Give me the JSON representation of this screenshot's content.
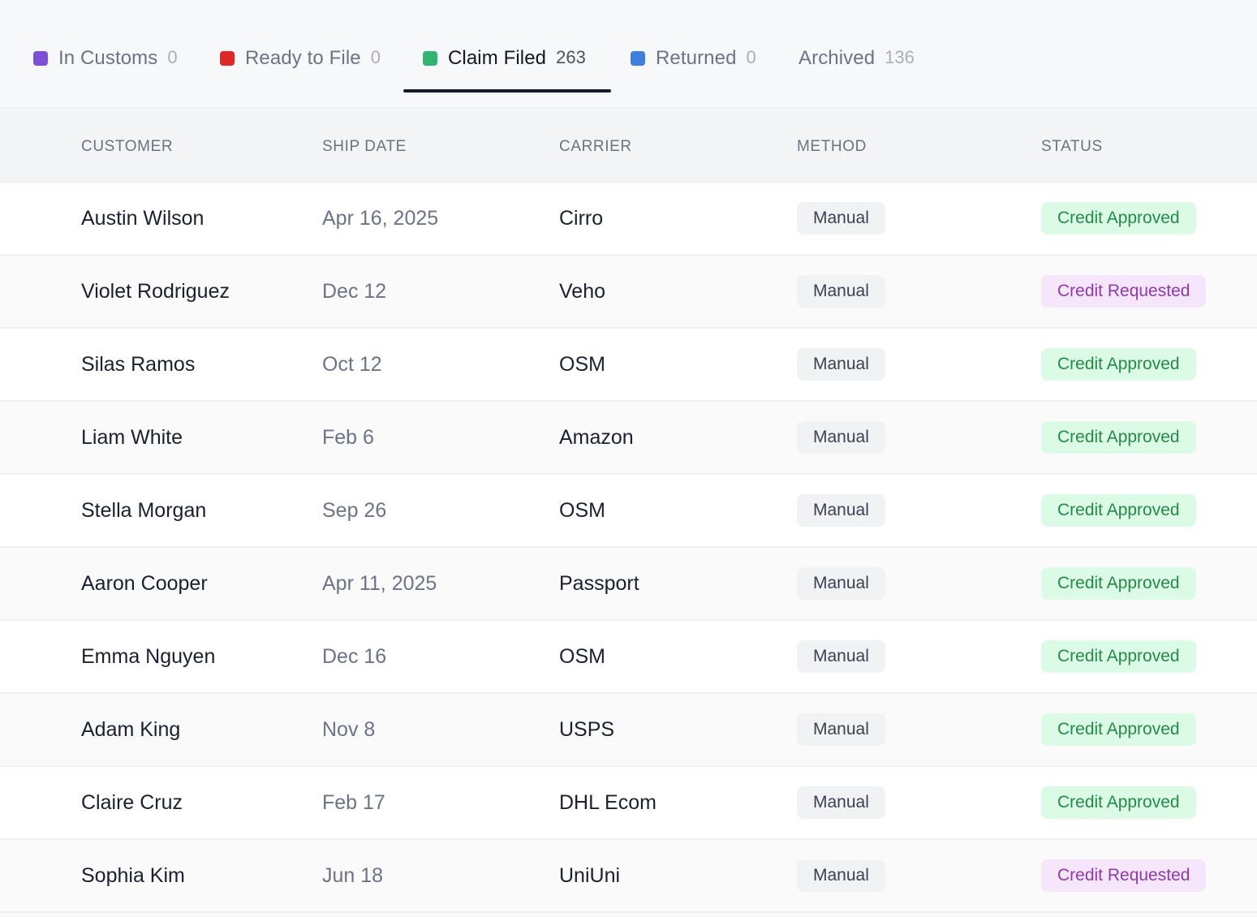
{
  "tabs": [
    {
      "label": "In Customs",
      "count": "0",
      "color": "#7b4fd6"
    },
    {
      "label": "Ready to File",
      "count": "0",
      "color": "#dc2a2a"
    },
    {
      "label": "Claim Filed",
      "count": "263",
      "color": "#2fb571",
      "active": true
    },
    {
      "label": "Returned",
      "count": "0",
      "color": "#3e7fdc"
    },
    {
      "label": "Archived",
      "count": "136"
    }
  ],
  "table": {
    "headers": {
      "customer": "CUSTOMER",
      "ship_date": "SHIP DATE",
      "carrier": "CARRIER",
      "method": "METHOD",
      "status": "STATUS"
    },
    "rows": [
      {
        "customer": "Austin Wilson",
        "ship_date": "Apr 16, 2025",
        "carrier": "Cirro",
        "method": "Manual",
        "status": "Credit Approved"
      },
      {
        "customer": "Violet Rodriguez",
        "ship_date": "Dec 12",
        "carrier": "Veho",
        "method": "Manual",
        "status": "Credit Requested"
      },
      {
        "customer": "Silas Ramos",
        "ship_date": "Oct 12",
        "carrier": "OSM",
        "method": "Manual",
        "status": "Credit Approved"
      },
      {
        "customer": "Liam White",
        "ship_date": "Feb 6",
        "carrier": "Amazon",
        "method": "Manual",
        "status": "Credit Approved"
      },
      {
        "customer": "Stella Morgan",
        "ship_date": "Sep 26",
        "carrier": "OSM",
        "method": "Manual",
        "status": "Credit Approved"
      },
      {
        "customer": "Aaron Cooper",
        "ship_date": "Apr 11, 2025",
        "carrier": "Passport",
        "method": "Manual",
        "status": "Credit Approved"
      },
      {
        "customer": "Emma Nguyen",
        "ship_date": "Dec 16",
        "carrier": "OSM",
        "method": "Manual",
        "status": "Credit Approved"
      },
      {
        "customer": "Adam King",
        "ship_date": "Nov 8",
        "carrier": "USPS",
        "method": "Manual",
        "status": "Credit Approved"
      },
      {
        "customer": "Claire Cruz",
        "ship_date": "Feb 17",
        "carrier": "DHL Ecom",
        "method": "Manual",
        "status": "Credit Approved"
      },
      {
        "customer": "Sophia Kim",
        "ship_date": "Jun 18",
        "carrier": "UniUni",
        "method": "Manual",
        "status": "Credit Requested"
      }
    ]
  }
}
